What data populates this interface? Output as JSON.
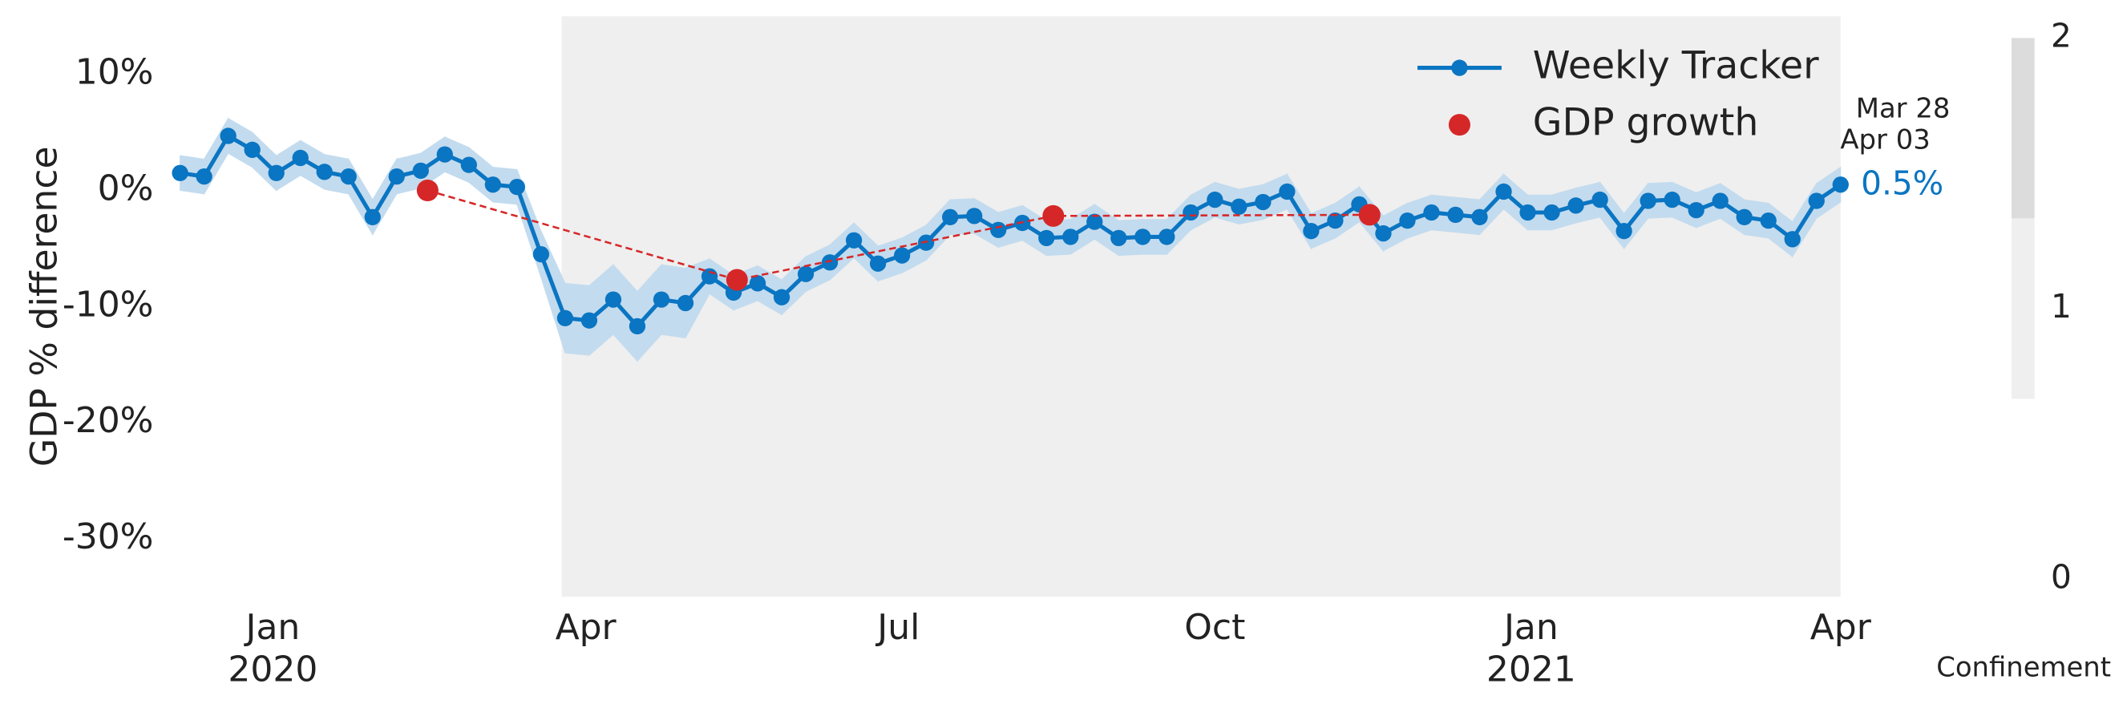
{
  "chart_data": {
    "type": "line",
    "ylabel": "GDP % difference",
    "x": [
      "2019-12-05",
      "2019-12-12",
      "2019-12-19",
      "2019-12-26",
      "2020-01-02",
      "2020-01-09",
      "2020-01-16",
      "2020-01-23",
      "2020-01-30",
      "2020-02-06",
      "2020-02-13",
      "2020-02-20",
      "2020-02-27",
      "2020-03-05",
      "2020-03-12",
      "2020-03-19",
      "2020-03-26",
      "2020-04-02",
      "2020-04-09",
      "2020-04-16",
      "2020-04-23",
      "2020-04-30",
      "2020-05-07",
      "2020-05-14",
      "2020-05-21",
      "2020-05-28",
      "2020-06-04",
      "2020-06-11",
      "2020-06-18",
      "2020-06-25",
      "2020-07-02",
      "2020-07-09",
      "2020-07-16",
      "2020-07-23",
      "2020-07-30",
      "2020-08-06",
      "2020-08-13",
      "2020-08-20",
      "2020-08-27",
      "2020-09-03",
      "2020-09-10",
      "2020-09-17",
      "2020-09-24",
      "2020-10-01",
      "2020-10-08",
      "2020-10-15",
      "2020-10-22",
      "2020-10-29",
      "2020-11-05",
      "2020-11-12",
      "2020-11-19",
      "2020-11-26",
      "2020-12-03",
      "2020-12-10",
      "2020-12-17",
      "2020-12-24",
      "2020-12-31",
      "2021-01-07",
      "2021-01-14",
      "2021-01-21",
      "2021-01-28",
      "2021-02-04",
      "2021-02-11",
      "2021-02-18",
      "2021-02-25",
      "2021-03-04",
      "2021-03-11",
      "2021-03-18",
      "2021-03-25",
      "2021-04-01"
    ],
    "series": [
      {
        "name": "Weekly Tracker",
        "color": "#0a75c2",
        "band_color": "#c3dbee",
        "values": [
          1.5,
          1.2,
          4.7,
          3.5,
          1.5,
          2.8,
          1.6,
          1.2,
          -2.3,
          1.2,
          1.7,
          3.1,
          2.2,
          0.5,
          0.3,
          -5.5,
          -11,
          -11.2,
          -9.4,
          -11.7,
          -9.4,
          -9.7,
          -7.4,
          -8.8,
          -8.0,
          -9.2,
          -7.2,
          -6.2,
          -4.3,
          -6.3,
          -5.6,
          -4.5,
          -2.3,
          -2.2,
          -3.4,
          -2.8,
          -4.1,
          -4.0,
          -2.7,
          -4.1,
          -4.0,
          -4.0,
          -1.9,
          -0.8,
          -1.4,
          -1.0,
          -0.1,
          -3.5,
          -2.6,
          -1.2,
          -3.7,
          -2.6,
          -1.9,
          -2.1,
          -2.3,
          -0.1,
          -1.9,
          -1.9,
          -1.3,
          -0.8,
          -3.5,
          -0.9,
          -0.8,
          -1.7,
          -0.9,
          -2.3,
          -2.6,
          -4.2,
          -0.9,
          0.5
        ],
        "errors": [
          1.5,
          1.5,
          1.5,
          1.5,
          1.5,
          1.5,
          1.5,
          1.5,
          1.5,
          1.5,
          1.5,
          1.5,
          1.5,
          1.5,
          1.5,
          2,
          3,
          3,
          3,
          3,
          3,
          3,
          1.5,
          1.5,
          1.5,
          1.5,
          1.5,
          1.5,
          1.5,
          1.5,
          1.5,
          1.5,
          1.5,
          1.5,
          1.5,
          1.5,
          1.5,
          1.5,
          1.5,
          1.5,
          1.5,
          1.5,
          1.5,
          1.5,
          1.5,
          1.5,
          1.5,
          1.5,
          1.5,
          1.5,
          1.5,
          1.5,
          1.5,
          1.5,
          1.5,
          1.5,
          1.5,
          1.5,
          1.5,
          1.5,
          1.5,
          1.5,
          1.5,
          1.5,
          1.5,
          1.5,
          1.5,
          1.5,
          1.5,
          1.5
        ]
      }
    ],
    "points": {
      "name": "GDP growth",
      "color": "#d62728",
      "x": [
        "2020-02-15",
        "2020-05-15",
        "2020-08-15",
        "2020-11-15"
      ],
      "values": [
        0,
        -7.7,
        -2.2,
        -2.1
      ]
    },
    "xlim": [
      "2019-12-02",
      "2021-04-01"
    ],
    "xticks": [
      {
        "value": "2020-01-01",
        "label": "Jan\n2020"
      },
      {
        "value": "2020-04-01",
        "label": "Apr"
      },
      {
        "value": "2020-07-01",
        "label": "Jul"
      },
      {
        "value": "2020-10-01",
        "label": "Oct"
      },
      {
        "value": "2021-01-01",
        "label": "Jan\n2021"
      },
      {
        "value": "2021-04-01",
        "label": "Apr"
      }
    ],
    "ylim": [
      -35,
      15
    ],
    "yticks": [
      {
        "value": -30,
        "label": "-30%"
      },
      {
        "value": -20,
        "label": "-20%"
      },
      {
        "value": -10,
        "label": "-10%"
      },
      {
        "value": 0,
        "label": "0%"
      },
      {
        "value": 10,
        "label": "10%"
      }
    ],
    "confinement": {
      "starts": [
        "2020-03-25"
      ],
      "ends": [
        "2021-04-01"
      ],
      "levels": [
        1
      ]
    },
    "colorbar": {
      "label": "Confinement",
      "lim": [
        0,
        2
      ],
      "ticks": [
        0,
        1,
        2
      ],
      "colors": [
        "#ffffff",
        "#efefef",
        "#dcdcdc"
      ]
    },
    "legend": "upper right",
    "annotations": [
      "Mar 28",
      "Apr 03"
    ],
    "end_label": "0.5%"
  }
}
